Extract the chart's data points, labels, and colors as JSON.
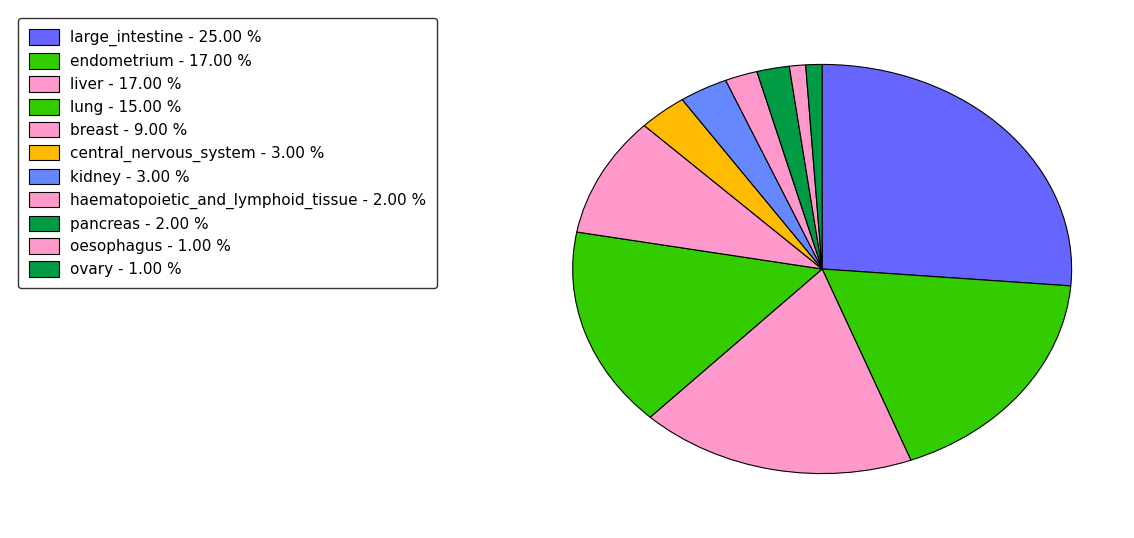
{
  "labels": [
    "large_intestine",
    "endometrium",
    "liver",
    "lung",
    "breast",
    "central_nervous_system",
    "kidney",
    "haematopoietic_and_lymphoid_tissue",
    "pancreas",
    "oesophagus",
    "ovary"
  ],
  "values": [
    25,
    17,
    17,
    15,
    9,
    3,
    3,
    2,
    2,
    1,
    1
  ],
  "slice_colors": [
    "#6666ff",
    "#33cc00",
    "#ff99cc",
    "#33cc00",
    "#ff99cc",
    "#ffbb00",
    "#6688ff",
    "#ff99cc",
    "#009944",
    "#ff99cc",
    "#009944"
  ],
  "legend_labels": [
    "large_intestine - 25.00 %",
    "endometrium - 17.00 %",
    "liver - 17.00 %",
    "lung - 15.00 %",
    "breast - 9.00 %",
    "central_nervous_system - 3.00 %",
    "kidney - 3.00 %",
    "haematopoietic_and_lymphoid_tissue - 2.00 %",
    "pancreas - 2.00 %",
    "oesophagus - 1.00 %",
    "ovary - 1.00 %"
  ],
  "legend_colors": [
    "#6666ff",
    "#33cc00",
    "#ff99cc",
    "#33cc00",
    "#ff99cc",
    "#ffbb00",
    "#6688ff",
    "#ff99cc",
    "#009944",
    "#ff99cc",
    "#009944"
  ],
  "startangle": 90,
  "figsize": [
    11.34,
    5.38
  ],
  "dpi": 100
}
